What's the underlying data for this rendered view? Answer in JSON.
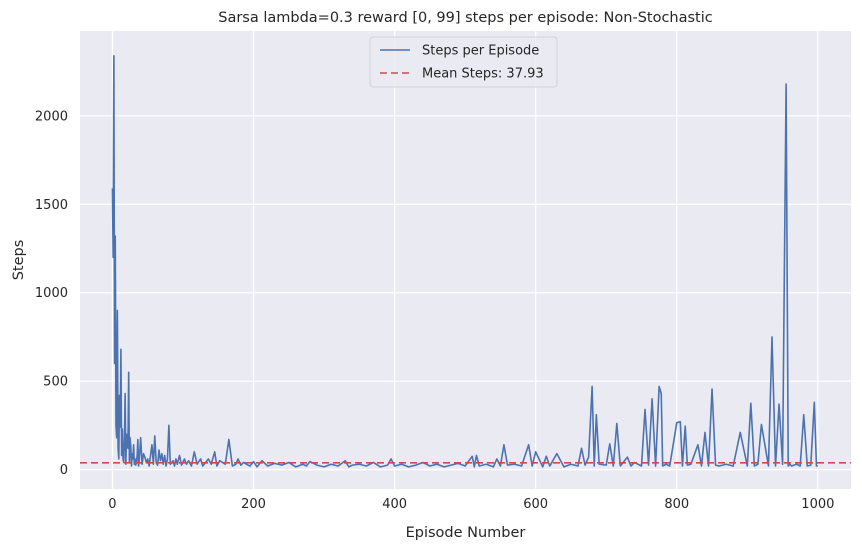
{
  "chart_data": {
    "type": "line",
    "title": "Sarsa lambda=0.3 reward [0, 99] steps per episode: Non-Stochastic",
    "xlabel": "Episode Number",
    "ylabel": "Steps",
    "xlim": [
      -46,
      1047
    ],
    "ylim": [
      -110,
      2480
    ],
    "xticks": [
      0,
      200,
      400,
      600,
      800,
      1000
    ],
    "yticks": [
      0,
      500,
      1000,
      1500,
      2000
    ],
    "grid": true,
    "legend_position": "top-center",
    "background_color": "#eaeaf2",
    "series": [
      {
        "name": "Steps per Episode",
        "color": "#4c72b0",
        "style": "solid",
        "x": [
          0,
          1,
          2,
          3,
          4,
          5,
          6,
          7,
          8,
          9,
          10,
          11,
          12,
          13,
          14,
          15,
          16,
          17,
          18,
          19,
          20,
          21,
          22,
          23,
          24,
          25,
          26,
          27,
          28,
          29,
          30,
          31,
          32,
          33,
          34,
          35,
          36,
          37,
          38,
          40,
          42,
          44,
          46,
          48,
          50,
          52,
          54,
          56,
          58,
          60,
          62,
          64,
          66,
          68,
          70,
          72,
          74,
          76,
          78,
          80,
          82,
          84,
          86,
          88,
          90,
          92,
          95,
          98,
          100,
          102,
          105,
          108,
          112,
          116,
          120,
          125,
          128,
          132,
          136,
          140,
          145,
          148,
          152,
          156,
          160,
          165,
          170,
          175,
          178,
          182,
          186,
          190,
          195,
          200,
          205,
          208,
          212,
          220,
          230,
          240,
          250,
          260,
          270,
          275,
          280,
          290,
          300,
          310,
          320,
          330,
          335,
          340,
          350,
          360,
          370,
          380,
          390,
          395,
          400,
          410,
          420,
          430,
          440,
          450,
          460,
          470,
          480,
          490,
          500,
          510,
          513,
          516,
          520,
          530,
          540,
          545,
          550,
          555,
          560,
          570,
          580,
          590,
          595,
          600,
          610,
          615,
          620,
          630,
          640,
          650,
          660,
          665,
          670,
          675,
          680,
          683,
          686,
          690,
          700,
          705,
          710,
          715,
          720,
          730,
          735,
          740,
          750,
          755,
          760,
          765,
          770,
          775,
          778,
          780,
          785,
          790,
          800,
          805,
          808,
          812,
          815,
          820,
          830,
          835,
          840,
          845,
          850,
          855,
          860,
          870,
          880,
          890,
          900,
          905,
          910,
          915,
          920,
          930,
          935,
          940,
          945,
          950,
          955,
          958,
          960,
          963,
          966,
          970,
          975,
          980,
          985,
          990,
          995,
          998,
          1000
        ],
        "y": [
          1590,
          1200,
          2340,
          600,
          1320,
          250,
          180,
          900,
          120,
          60,
          420,
          240,
          680,
          80,
          230,
          60,
          40,
          180,
          430,
          30,
          200,
          150,
          120,
          550,
          40,
          180,
          130,
          20,
          90,
          60,
          140,
          30,
          60,
          25,
          40,
          80,
          170,
          20,
          50,
          180,
          30,
          90,
          70,
          40,
          60,
          20,
          80,
          140,
          30,
          190,
          40,
          25,
          110,
          50,
          90,
          30,
          80,
          20,
          60,
          250,
          30,
          40,
          50,
          20,
          60,
          30,
          80,
          25,
          40,
          60,
          30,
          50,
          20,
          100,
          30,
          60,
          20,
          40,
          60,
          30,
          100,
          20,
          50,
          40,
          30,
          170,
          20,
          30,
          60,
          25,
          40,
          30,
          20,
          45,
          15,
          30,
          50,
          20,
          35,
          25,
          40,
          15,
          30,
          20,
          45,
          25,
          15,
          30,
          20,
          50,
          15,
          25,
          30,
          20,
          40,
          15,
          25,
          60,
          20,
          30,
          15,
          25,
          40,
          20,
          30,
          15,
          25,
          35,
          20,
          75,
          15,
          80,
          20,
          30,
          15,
          60,
          20,
          140,
          25,
          30,
          20,
          140,
          20,
          100,
          15,
          75,
          20,
          90,
          15,
          30,
          20,
          120,
          25,
          70,
          470,
          20,
          310,
          30,
          25,
          145,
          20,
          260,
          20,
          70,
          20,
          40,
          20,
          340,
          25,
          400,
          20,
          470,
          430,
          20,
          30,
          20,
          265,
          270,
          20,
          245,
          25,
          30,
          140,
          20,
          210,
          20,
          455,
          25,
          20,
          30,
          20,
          210,
          20,
          375,
          20,
          30,
          255,
          20,
          750,
          20,
          370,
          30,
          2180,
          20,
          30,
          20,
          25,
          30,
          20,
          310,
          20,
          25,
          380,
          20,
          20
        ]
      },
      {
        "name": "Mean Steps: 37.93",
        "color": "#c44e52",
        "style": "dashed",
        "value": 37.93
      }
    ]
  }
}
